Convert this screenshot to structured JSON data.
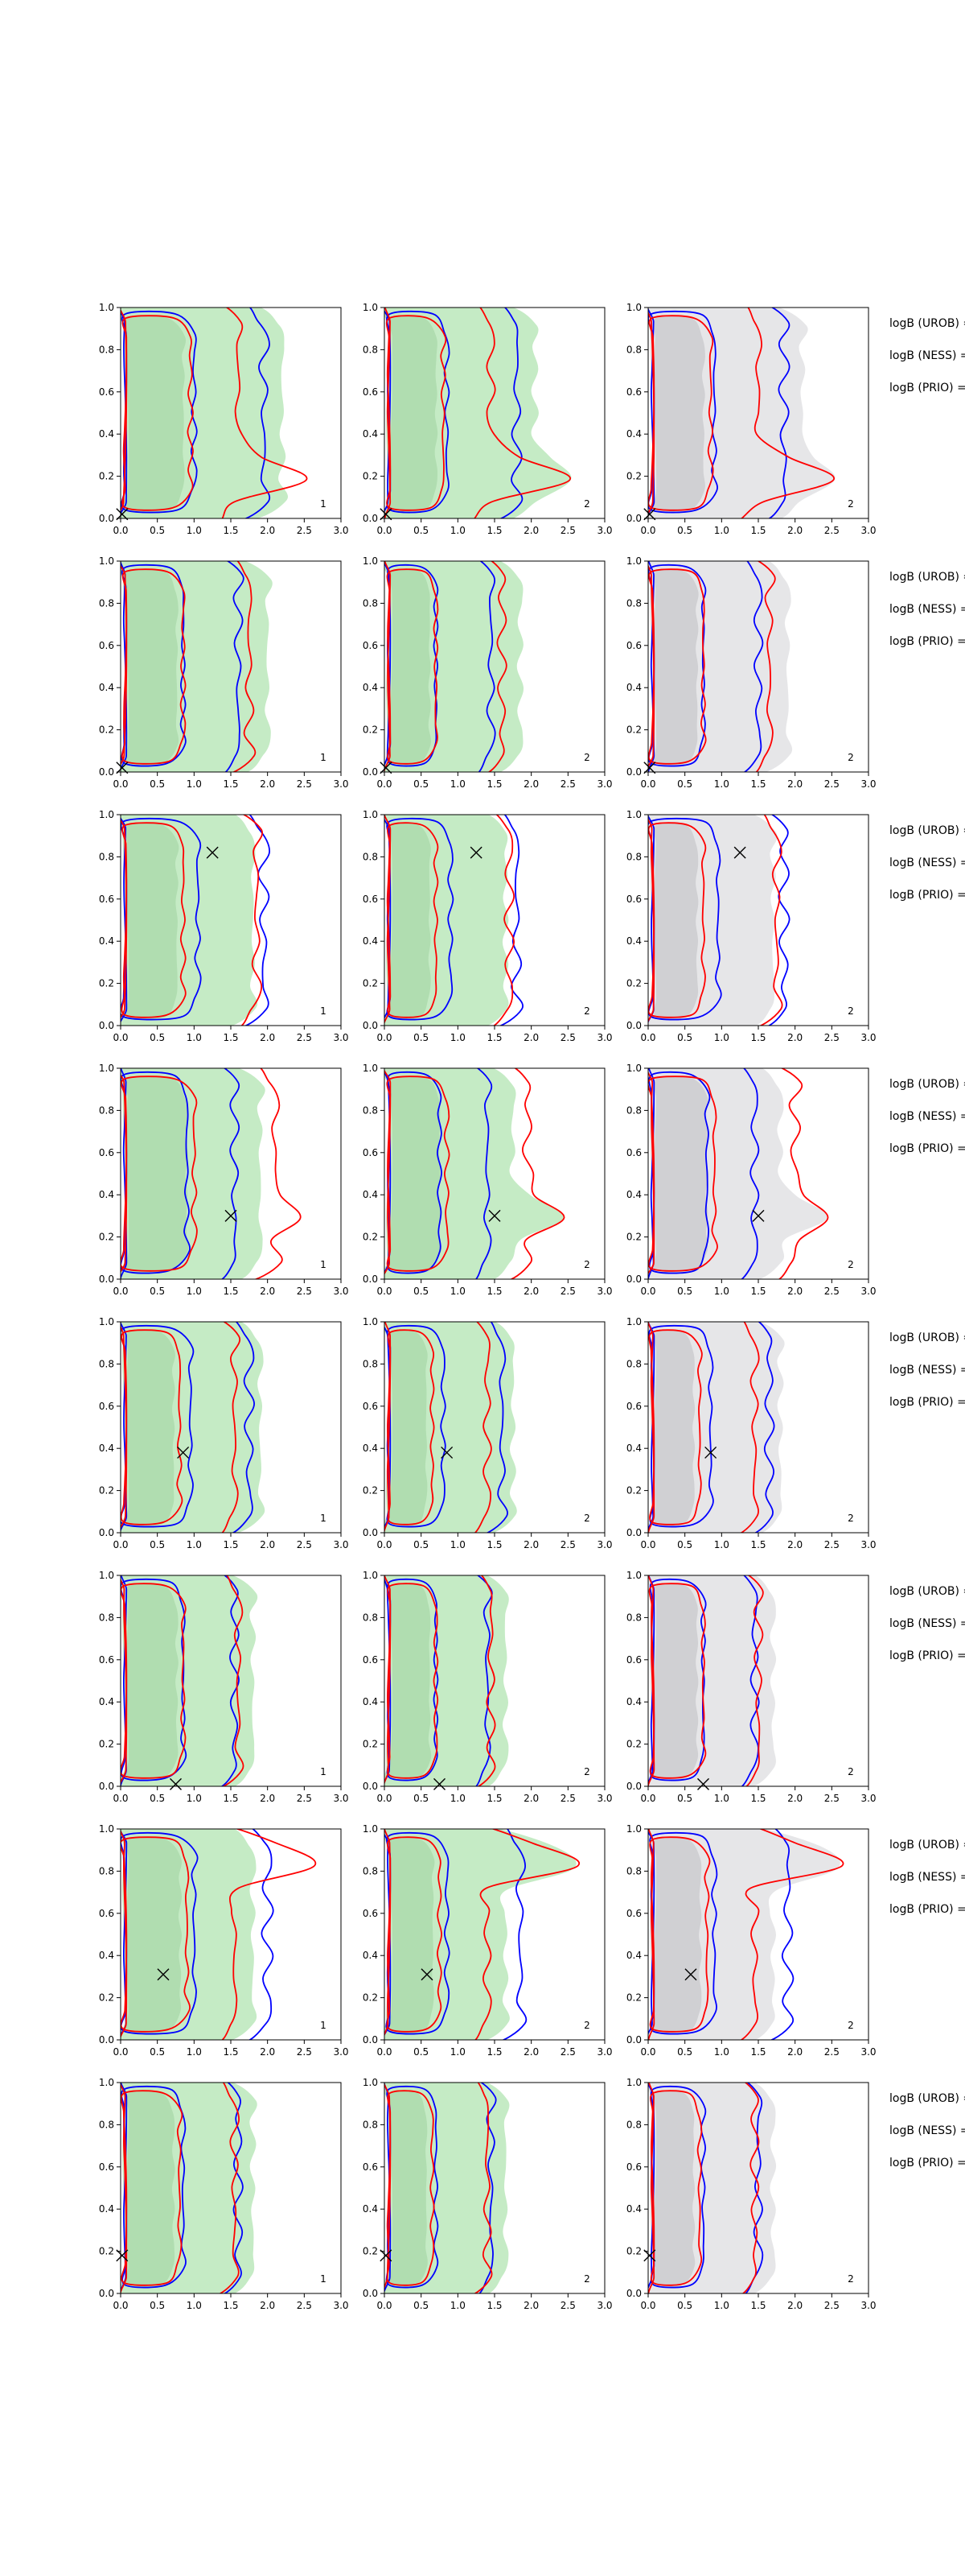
{
  "figure": {
    "side_labels": [
      "logB (UROB) =",
      "logB (NESS) =",
      "logB (PRIO) ="
    ],
    "colors": {
      "fill_green": "#bfe9bf",
      "fill_green_dark": "#a8d8a8",
      "fill_gray": "#e3e3e5",
      "fill_gray_dark": "#c8c8cc",
      "contour_blue": "#0000ff",
      "contour_red": "#ff0000",
      "axis": "#000000"
    }
  },
  "chart_data": {
    "type": "contour",
    "xlim": [
      0,
      3
    ],
    "ylim": [
      0,
      1
    ],
    "xticks": [
      "0.0",
      "0.5",
      "1.0",
      "1.5",
      "2.0",
      "2.5",
      "3.0"
    ],
    "yticks": [
      "0.0",
      "0.2",
      "0.4",
      "0.6",
      "0.8",
      "1.0"
    ],
    "grid": false,
    "columns": [
      {
        "label": "1",
        "fill": "green"
      },
      {
        "label": "2",
        "fill": "green"
      },
      {
        "label": "2",
        "fill": "gray"
      }
    ],
    "rows": [
      {
        "marker": [
          0.02,
          0.02
        ],
        "blue_inner_xmax": 1.0,
        "blue_outer_xmax": 1.95,
        "red_inner_xmax": 0.95,
        "red_outer_xmax": 1.6,
        "band_xmax": 2.1,
        "lobe": {
          "y": 0.2,
          "x": 2.55
        }
      },
      {
        "marker": [
          0.02,
          0.02
        ],
        "blue_inner_xmax": 0.85,
        "blue_outer_xmax": 1.6,
        "red_inner_xmax": 0.85,
        "red_outer_xmax": 1.75,
        "band_xmax": 1.9
      },
      {
        "marker": [
          1.25,
          0.82
        ],
        "blue_inner_xmax": 1.05,
        "blue_outer_xmax": 1.95,
        "red_inner_xmax": 0.85,
        "red_outer_xmax": 1.85,
        "band_xmax": 1.7
      },
      {
        "marker": [
          1.5,
          0.3
        ],
        "blue_inner_xmax": 0.9,
        "blue_outer_xmax": 1.55,
        "red_inner_xmax": 1.0,
        "red_outer_xmax": 2.1,
        "band_xmax": 1.8,
        "lobe": {
          "y": 0.3,
          "x": 2.45
        }
      },
      {
        "marker": [
          0.85,
          0.38
        ],
        "blue_inner_xmax": 0.95,
        "blue_outer_xmax": 1.75,
        "red_inner_xmax": 0.8,
        "red_outer_xmax": 1.55,
        "band_xmax": 1.8
      },
      {
        "marker": [
          0.75,
          0.01
        ],
        "blue_inner_xmax": 0.85,
        "blue_outer_xmax": 1.55,
        "red_inner_xmax": 0.85,
        "red_outer_xmax": 1.6,
        "band_xmax": 1.7
      },
      {
        "marker": [
          0.58,
          0.31
        ],
        "blue_inner_xmax": 1.0,
        "blue_outer_xmax": 2.0,
        "red_inner_xmax": 0.9,
        "red_outer_xmax": 1.55,
        "band_xmax": 1.7,
        "lobe": {
          "y": 0.85,
          "x": 2.7
        }
      },
      {
        "marker": [
          0.02,
          0.18
        ],
        "blue_inner_xmax": 0.85,
        "blue_outer_xmax": 1.6,
        "red_inner_xmax": 0.8,
        "red_outer_xmax": 1.55,
        "band_xmax": 1.7
      }
    ]
  }
}
